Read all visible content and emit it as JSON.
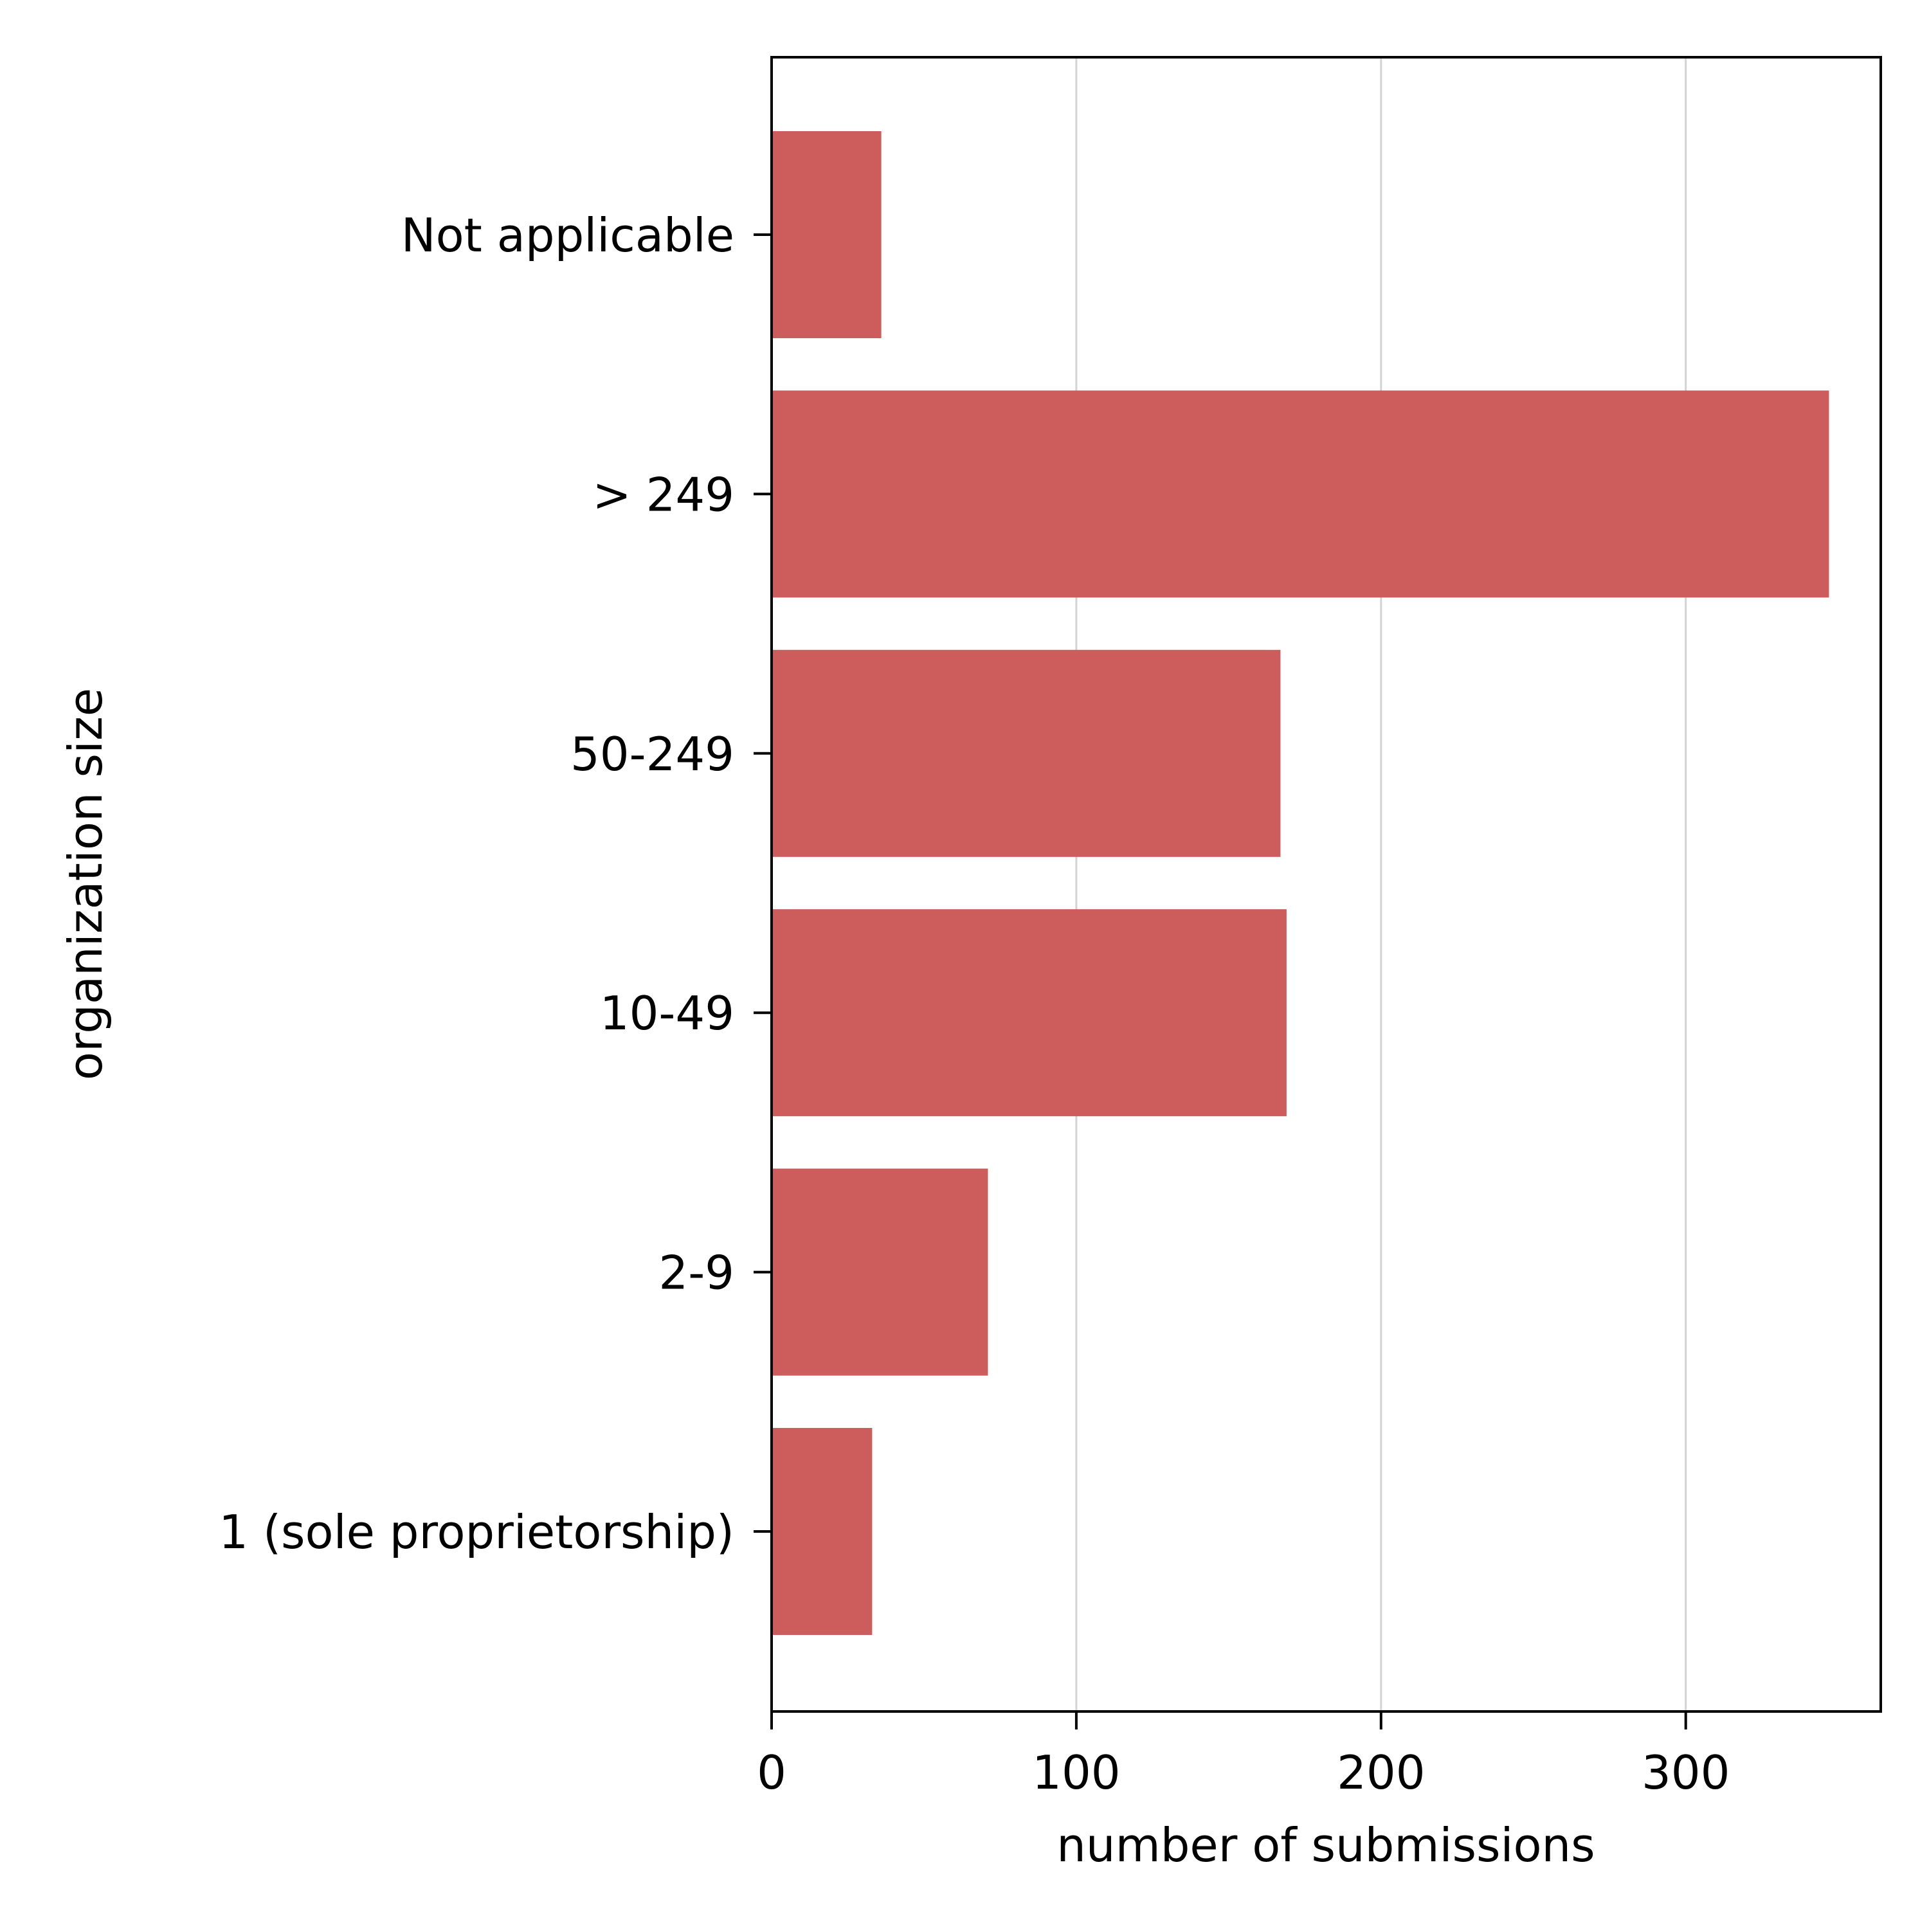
{
  "chart_data": {
    "type": "bar",
    "orientation": "horizontal",
    "categories": [
      "1 (sole proprietorship)",
      "2-9",
      "10-49",
      "50-249",
      "> 249",
      "Not applicable"
    ],
    "values": [
      33,
      71,
      169,
      167,
      347,
      36
    ],
    "xlabel": "number of submissions",
    "ylabel": "organization size",
    "xlim": [
      0,
      364
    ],
    "xticks": [
      0,
      100,
      200,
      300
    ],
    "xtick_labels": [
      "0",
      "100",
      "200",
      "300"
    ],
    "grid": "x-axis vertical lines",
    "bar_color": "#cd5c5c",
    "grid_color": "#d3d3d3"
  }
}
